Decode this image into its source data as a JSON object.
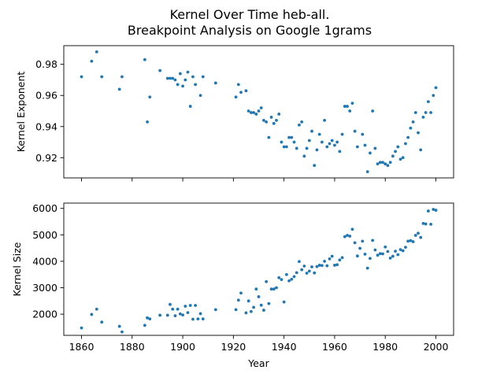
{
  "chart_data": [
    {
      "type": "scatter",
      "title": "Kernel Over Time heb-all.\nBreakpoint Analysis on Google 1grams",
      "xlabel": "",
      "ylabel": "Kernel Exponent",
      "xlim": [
        1853,
        2007
      ],
      "ylim": [
        0.907,
        0.992
      ],
      "xticks": [
        1860,
        1880,
        1900,
        1920,
        1940,
        1960,
        1980,
        2000
      ],
      "xtick_labels_visible": false,
      "yticks": [
        0.92,
        0.94,
        0.96,
        0.98
      ],
      "ytick_labels": [
        "0.92",
        "0.94",
        "0.96",
        "0.98"
      ],
      "color": "#1f77b4",
      "points": [
        [
          1860,
          0.972
        ],
        [
          1864,
          0.982
        ],
        [
          1866,
          0.988
        ],
        [
          1868,
          0.972
        ],
        [
          1875,
          0.964
        ],
        [
          1876,
          0.972
        ],
        [
          1885,
          0.983
        ],
        [
          1886,
          0.943
        ],
        [
          1887,
          0.959
        ],
        [
          1891,
          0.976
        ],
        [
          1894,
          0.971
        ],
        [
          1895,
          0.971
        ],
        [
          1896,
          0.971
        ],
        [
          1897,
          0.97
        ],
        [
          1898,
          0.967
        ],
        [
          1899,
          0.974
        ],
        [
          1900,
          0.966
        ],
        [
          1901,
          0.97
        ],
        [
          1902,
          0.975
        ],
        [
          1903,
          0.953
        ],
        [
          1904,
          0.972
        ],
        [
          1905,
          0.967
        ],
        [
          1907,
          0.96
        ],
        [
          1908,
          0.972
        ],
        [
          1913,
          0.968
        ],
        [
          1921,
          0.959
        ],
        [
          1922,
          0.967
        ],
        [
          1923,
          0.962
        ],
        [
          1925,
          0.963
        ],
        [
          1926,
          0.95
        ],
        [
          1927,
          0.949
        ],
        [
          1928,
          0.949
        ],
        [
          1929,
          0.948
        ],
        [
          1930,
          0.95
        ],
        [
          1931,
          0.952
        ],
        [
          1932,
          0.944
        ],
        [
          1933,
          0.943
        ],
        [
          1934,
          0.933
        ],
        [
          1935,
          0.946
        ],
        [
          1936,
          0.942
        ],
        [
          1937,
          0.944
        ],
        [
          1938,
          0.948
        ],
        [
          1939,
          0.93
        ],
        [
          1940,
          0.927
        ],
        [
          1941,
          0.927
        ],
        [
          1942,
          0.933
        ],
        [
          1943,
          0.933
        ],
        [
          1944,
          0.93
        ],
        [
          1945,
          0.926
        ],
        [
          1946,
          0.941
        ],
        [
          1947,
          0.943
        ],
        [
          1948,
          0.921
        ],
        [
          1949,
          0.926
        ],
        [
          1950,
          0.931
        ],
        [
          1951,
          0.937
        ],
        [
          1952,
          0.915
        ],
        [
          1953,
          0.925
        ],
        [
          1954,
          0.935
        ],
        [
          1955,
          0.93
        ],
        [
          1956,
          0.944
        ],
        [
          1957,
          0.927
        ],
        [
          1958,
          0.929
        ],
        [
          1959,
          0.931
        ],
        [
          1960,
          0.928
        ],
        [
          1961,
          0.93
        ],
        [
          1962,
          0.924
        ],
        [
          1963,
          0.935
        ],
        [
          1964,
          0.953
        ],
        [
          1965,
          0.953
        ],
        [
          1966,
          0.95
        ],
        [
          1967,
          0.955
        ],
        [
          1968,
          0.937
        ],
        [
          1969,
          0.927
        ],
        [
          1971,
          0.935
        ],
        [
          1972,
          0.928
        ],
        [
          1973,
          0.911
        ],
        [
          1974,
          0.923
        ],
        [
          1975,
          0.95
        ],
        [
          1976,
          0.926
        ],
        [
          1977,
          0.916
        ],
        [
          1978,
          0.917
        ],
        [
          1979,
          0.917
        ],
        [
          1980,
          0.916
        ],
        [
          1981,
          0.915
        ],
        [
          1982,
          0.917
        ],
        [
          1983,
          0.921
        ],
        [
          1984,
          0.924
        ],
        [
          1985,
          0.927
        ],
        [
          1986,
          0.919
        ],
        [
          1987,
          0.92
        ],
        [
          1988,
          0.929
        ],
        [
          1989,
          0.933
        ],
        [
          1990,
          0.939
        ],
        [
          1991,
          0.943
        ],
        [
          1992,
          0.949
        ],
        [
          1993,
          0.936
        ],
        [
          1994,
          0.925
        ],
        [
          1995,
          0.946
        ],
        [
          1996,
          0.949
        ],
        [
          1997,
          0.956
        ],
        [
          1998,
          0.949
        ],
        [
          1999,
          0.96
        ],
        [
          2000,
          0.965
        ]
      ]
    },
    {
      "type": "scatter",
      "xlabel": "Year",
      "ylabel": "Kernel Size",
      "xlim": [
        1853,
        2007
      ],
      "ylim": [
        1200,
        6200
      ],
      "xticks": [
        1860,
        1880,
        1900,
        1920,
        1940,
        1960,
        1980,
        2000
      ],
      "xtick_labels": [
        "1860",
        "1880",
        "1900",
        "1920",
        "1940",
        "1960",
        "1980",
        "2000"
      ],
      "yticks": [
        2000,
        3000,
        4000,
        5000,
        6000
      ],
      "ytick_labels": [
        "2000",
        "3000",
        "4000",
        "5000",
        "6000"
      ],
      "color": "#1f77b4",
      "points": [
        [
          1860,
          1480
        ],
        [
          1864,
          1990
        ],
        [
          1866,
          2190
        ],
        [
          1868,
          1700
        ],
        [
          1875,
          1540
        ],
        [
          1876,
          1330
        ],
        [
          1885,
          1580
        ],
        [
          1886,
          1860
        ],
        [
          1887,
          1820
        ],
        [
          1891,
          1960
        ],
        [
          1894,
          1960
        ],
        [
          1895,
          2370
        ],
        [
          1896,
          2190
        ],
        [
          1897,
          1940
        ],
        [
          1898,
          2190
        ],
        [
          1899,
          2010
        ],
        [
          1900,
          1970
        ],
        [
          1901,
          2300
        ],
        [
          1902,
          2060
        ],
        [
          1903,
          2330
        ],
        [
          1904,
          1810
        ],
        [
          1905,
          2330
        ],
        [
          1906,
          1820
        ],
        [
          1907,
          2020
        ],
        [
          1908,
          1820
        ],
        [
          1913,
          2170
        ],
        [
          1921,
          2170
        ],
        [
          1922,
          2530
        ],
        [
          1923,
          2800
        ],
        [
          1925,
          2050
        ],
        [
          1926,
          2500
        ],
        [
          1927,
          2100
        ],
        [
          1928,
          2260
        ],
        [
          1929,
          2950
        ],
        [
          1930,
          2660
        ],
        [
          1931,
          2340
        ],
        [
          1932,
          2150
        ],
        [
          1933,
          3230
        ],
        [
          1934,
          2400
        ],
        [
          1935,
          2950
        ],
        [
          1936,
          2950
        ],
        [
          1937,
          3000
        ],
        [
          1938,
          3380
        ],
        [
          1939,
          3310
        ],
        [
          1940,
          2460
        ],
        [
          1941,
          3500
        ],
        [
          1942,
          3260
        ],
        [
          1943,
          3320
        ],
        [
          1944,
          3420
        ],
        [
          1945,
          3570
        ],
        [
          1946,
          3990
        ],
        [
          1947,
          3680
        ],
        [
          1948,
          3820
        ],
        [
          1949,
          3550
        ],
        [
          1950,
          3630
        ],
        [
          1951,
          3790
        ],
        [
          1952,
          3560
        ],
        [
          1953,
          3800
        ],
        [
          1954,
          3850
        ],
        [
          1955,
          3840
        ],
        [
          1956,
          4000
        ],
        [
          1957,
          3830
        ],
        [
          1958,
          4090
        ],
        [
          1959,
          4190
        ],
        [
          1960,
          3850
        ],
        [
          1961,
          3870
        ],
        [
          1962,
          4050
        ],
        [
          1963,
          4140
        ],
        [
          1964,
          4930
        ],
        [
          1965,
          4980
        ],
        [
          1966,
          4950
        ],
        [
          1967,
          5210
        ],
        [
          1968,
          4700
        ],
        [
          1969,
          4200
        ],
        [
          1970,
          4490
        ],
        [
          1971,
          4760
        ],
        [
          1972,
          4270
        ],
        [
          1973,
          3740
        ],
        [
          1974,
          4110
        ],
        [
          1975,
          4790
        ],
        [
          1976,
          4430
        ],
        [
          1977,
          4230
        ],
        [
          1978,
          4290
        ],
        [
          1979,
          4280
        ],
        [
          1980,
          4540
        ],
        [
          1981,
          4370
        ],
        [
          1982,
          4120
        ],
        [
          1983,
          4190
        ],
        [
          1984,
          4380
        ],
        [
          1985,
          4250
        ],
        [
          1986,
          4440
        ],
        [
          1987,
          4400
        ],
        [
          1988,
          4530
        ],
        [
          1989,
          4760
        ],
        [
          1990,
          4780
        ],
        [
          1991,
          4740
        ],
        [
          1992,
          4980
        ],
        [
          1993,
          5060
        ],
        [
          1994,
          4900
        ],
        [
          1995,
          5430
        ],
        [
          1996,
          5410
        ],
        [
          1997,
          5900
        ],
        [
          1998,
          5400
        ],
        [
          1999,
          5960
        ],
        [
          2000,
          5930
        ]
      ]
    }
  ]
}
